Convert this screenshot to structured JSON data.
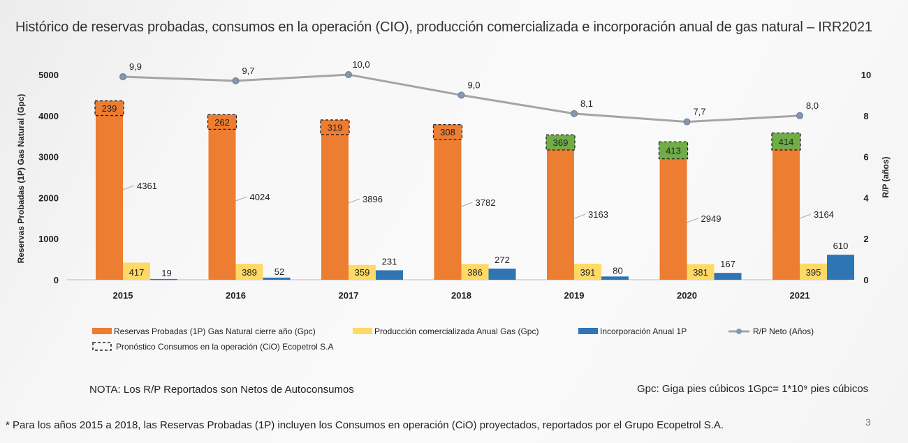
{
  "title": "Histórico de reservas probadas, consumos en la operación (CIO), producción comercializada e incorporación anual de gas natural – IRR2021",
  "chart_data": {
    "type": "bar",
    "categories": [
      "2015",
      "2016",
      "2017",
      "2018",
      "2019",
      "2020",
      "2021"
    ],
    "series": [
      {
        "name": "Reservas Probadas (1P) Gas Natural cierre año (Gpc)",
        "values": [
          4361,
          4024,
          3896,
          3782,
          3163,
          2949,
          3164
        ],
        "color": "#ED7D31"
      },
      {
        "name": "Pronóstico Consumos en la operación (CiO) Ecopetrol S.A",
        "values": [
          239,
          262,
          319,
          308,
          369,
          413,
          414
        ],
        "color_inside": "#ED7D31",
        "color_stacked": "#70AD47"
      },
      {
        "name": "Producción comercializada Anual Gas (Gpc)",
        "values": [
          417,
          389,
          359,
          386,
          391,
          381,
          395
        ],
        "color": "#FFD966"
      },
      {
        "name": "Incorporación Anual 1P",
        "values": [
          19,
          52,
          231,
          272,
          80,
          167,
          610
        ],
        "color": "#2E75B6"
      },
      {
        "name": "R/P Neto (Años)",
        "values": [
          9.9,
          9.7,
          10.0,
          9.0,
          8.1,
          7.7,
          8.0
        ],
        "labels": [
          "9,9",
          "9,7",
          "10,0",
          "9,0",
          "8,1",
          "7,7",
          "8,0"
        ],
        "color": "#A5A5A5",
        "axis": "right"
      }
    ],
    "ylabel": "Reservas Probadas (1P) Gas Natural (Gpc)",
    "ylim": [
      0,
      5000
    ],
    "yticks": [
      "0",
      "1000",
      "2000",
      "3000",
      "4000",
      "5000"
    ],
    "y2label": "R/P (años)",
    "y2lim": [
      0,
      10
    ],
    "y2ticks": [
      "0",
      "2",
      "4",
      "6",
      "8",
      "10"
    ],
    "legend": "bottom",
    "grid": false
  },
  "notes": {
    "nota": "NOTA: Los R/P Reportados son Netos de Autoconsumos",
    "gpc": "Gpc: Giga pies cúbicos 1Gpc= 1*10⁹ pies cúbicos",
    "footnote": "* Para los años 2015 a 2018, las Reservas Probadas (1P) incluyen los Consumos en operación (CiO) proyectados, reportados por el Grupo Ecopetrol S.A.",
    "page": "3"
  }
}
